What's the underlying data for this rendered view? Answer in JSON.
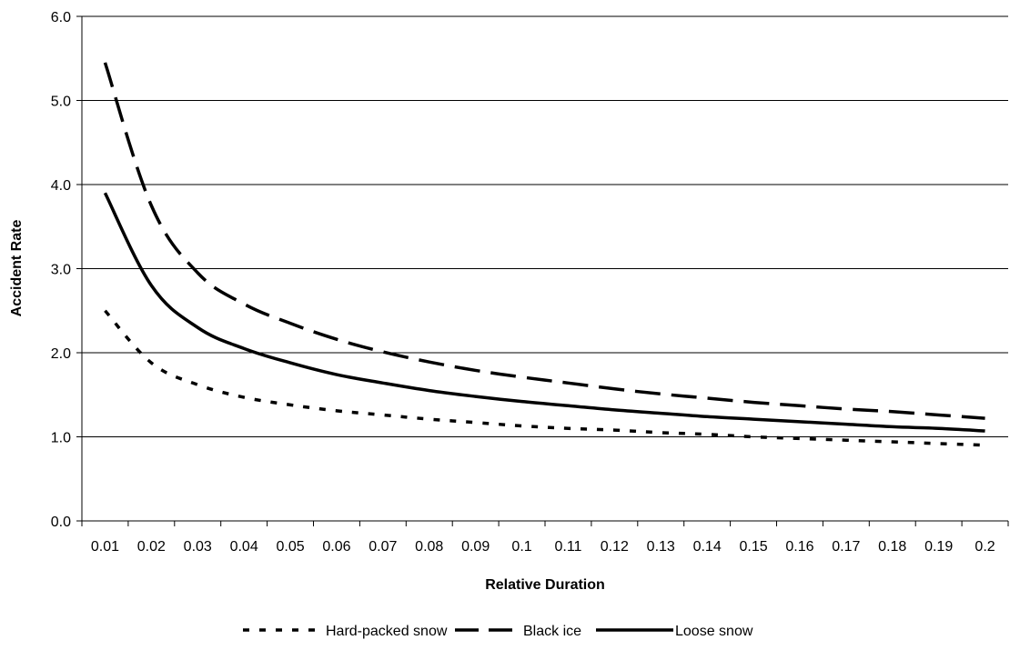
{
  "chart_data": {
    "type": "line",
    "title": "",
    "xlabel": "Relative Duration",
    "ylabel": "Accident Rate",
    "categories": [
      "0.01",
      "0.02",
      "0.03",
      "0.04",
      "0.05",
      "0.06",
      "0.07",
      "0.08",
      "0.09",
      "0.1",
      "0.11",
      "0.12",
      "0.13",
      "0.14",
      "0.15",
      "0.16",
      "0.17",
      "0.18",
      "0.19",
      "0.2"
    ],
    "ylim": [
      0,
      6
    ],
    "yticks": [
      "0.0",
      "1.0",
      "2.0",
      "3.0",
      "4.0",
      "5.0",
      "6.0"
    ],
    "grid": true,
    "legend_position": "bottom",
    "series": [
      {
        "name": "Hard-packed snow",
        "style": "dotted",
        "color": "#000000",
        "values": [
          2.5,
          1.88,
          1.62,
          1.47,
          1.38,
          1.31,
          1.26,
          1.21,
          1.17,
          1.13,
          1.1,
          1.08,
          1.05,
          1.03,
          1.0,
          0.98,
          0.96,
          0.94,
          0.92,
          0.9
        ]
      },
      {
        "name": "Black ice",
        "style": "dashed",
        "color": "#000000",
        "values": [
          5.45,
          3.75,
          2.95,
          2.58,
          2.35,
          2.16,
          2.01,
          1.89,
          1.79,
          1.71,
          1.64,
          1.57,
          1.51,
          1.46,
          1.41,
          1.37,
          1.33,
          1.3,
          1.26,
          1.22
        ]
      },
      {
        "name": "Loose snow",
        "style": "solid",
        "color": "#000000",
        "values": [
          3.9,
          2.8,
          2.3,
          2.05,
          1.88,
          1.74,
          1.64,
          1.55,
          1.48,
          1.42,
          1.37,
          1.32,
          1.28,
          1.24,
          1.21,
          1.18,
          1.15,
          1.12,
          1.1,
          1.07
        ]
      }
    ]
  }
}
